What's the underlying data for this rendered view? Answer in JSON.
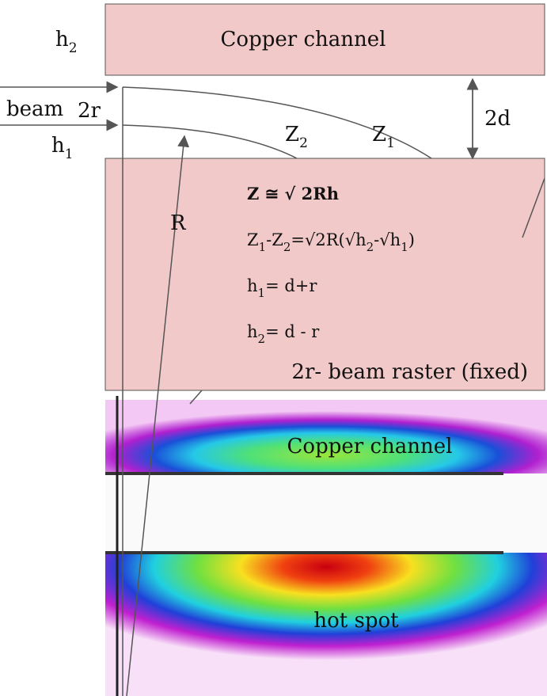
{
  "top_block": "Copper channel",
  "labels": {
    "h2": {
      "base": "h",
      "sub": "2"
    },
    "beam": "beam",
    "two_r": "2r",
    "h1": {
      "base": "h",
      "sub": "1"
    },
    "R": "R",
    "z2": {
      "base": "Z",
      "sub": "2"
    },
    "z1": {
      "base": "Z",
      "sub": "1"
    },
    "two_d": "2d"
  },
  "formulas": [
    [
      "Z ≅ √ 2Rh"
    ],
    [
      "Z",
      {
        "sub": "1"
      },
      "-Z",
      {
        "sub": "2"
      },
      "=√2R(√h",
      {
        "sub": "2"
      },
      "-√h",
      {
        "sub": "1"
      },
      ")"
    ],
    [
      "h",
      {
        "sub": "1"
      },
      "= d+r"
    ],
    [
      "h",
      {
        "sub": "2"
      },
      "= d - r"
    ]
  ],
  "raster_note": "2r- beam raster (fixed)",
  "image": {
    "channel_label": "Copper channel",
    "hot_spot_label": "hot spot"
  }
}
